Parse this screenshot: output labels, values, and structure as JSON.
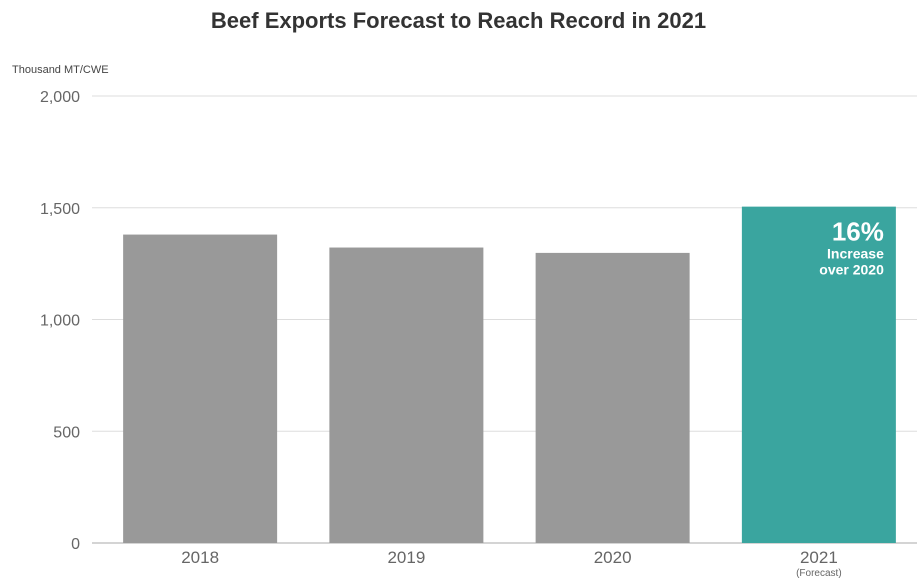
{
  "chart_data": {
    "type": "bar",
    "title": "Beef Exports Forecast to Reach Record in 2021",
    "ylabel": "Thousand MT/CWE",
    "xlabel": "",
    "categories": [
      "2018",
      "2019",
      "2020",
      "2021"
    ],
    "category_notes": [
      "",
      "",
      "",
      "(Forecast)"
    ],
    "values": [
      1380,
      1322,
      1298,
      1505
    ],
    "ylim": [
      0,
      2000
    ],
    "yticks": [
      0,
      500,
      1000,
      1500,
      2000
    ],
    "ytick_labels": [
      "0",
      "500",
      "1,000",
      "1,500",
      "2,000"
    ],
    "grid": true,
    "colors": {
      "actual": "#999999",
      "forecast": "#3aa59f",
      "grid": "#dddddd",
      "axis": "#aaaaaa"
    },
    "annotation": {
      "category": "2021",
      "lines": [
        "16%",
        "Increase",
        "over 2020"
      ]
    }
  }
}
